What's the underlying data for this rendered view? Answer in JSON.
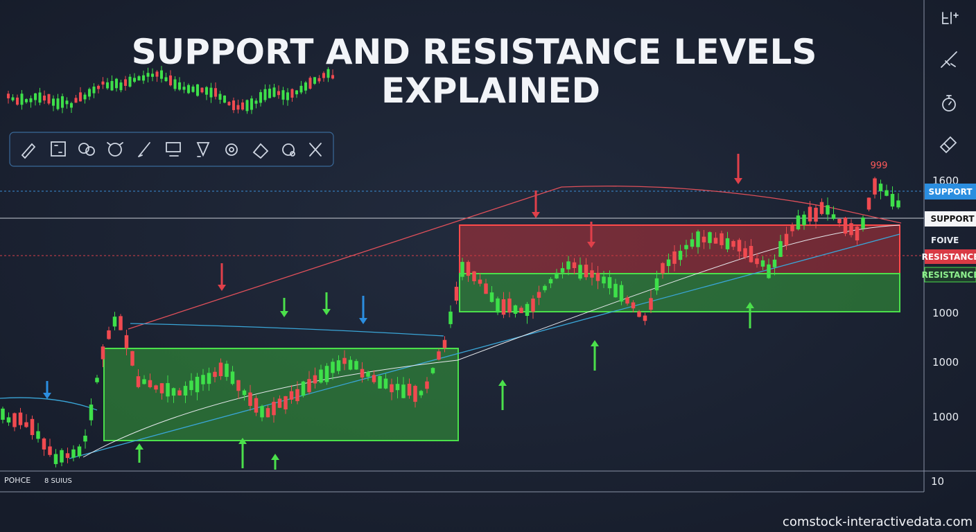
{
  "header": {
    "title": [
      "SUPPORT AND RESISTANCE LEVELS",
      "EXPLAINED"
    ]
  },
  "peak_label": "999",
  "price_axis": {
    "labels": [
      "1600",
      "1000",
      "1000",
      "1000",
      "10"
    ]
  },
  "tags": [
    "SUPPORT",
    "SUPPORT",
    "FOIVE",
    "RESISTANCE",
    "RESISTANCE"
  ],
  "bottom_labels": [
    "POHCE",
    "8 SUIUS"
  ],
  "watermark": "comstock-interactivedata.com"
}
